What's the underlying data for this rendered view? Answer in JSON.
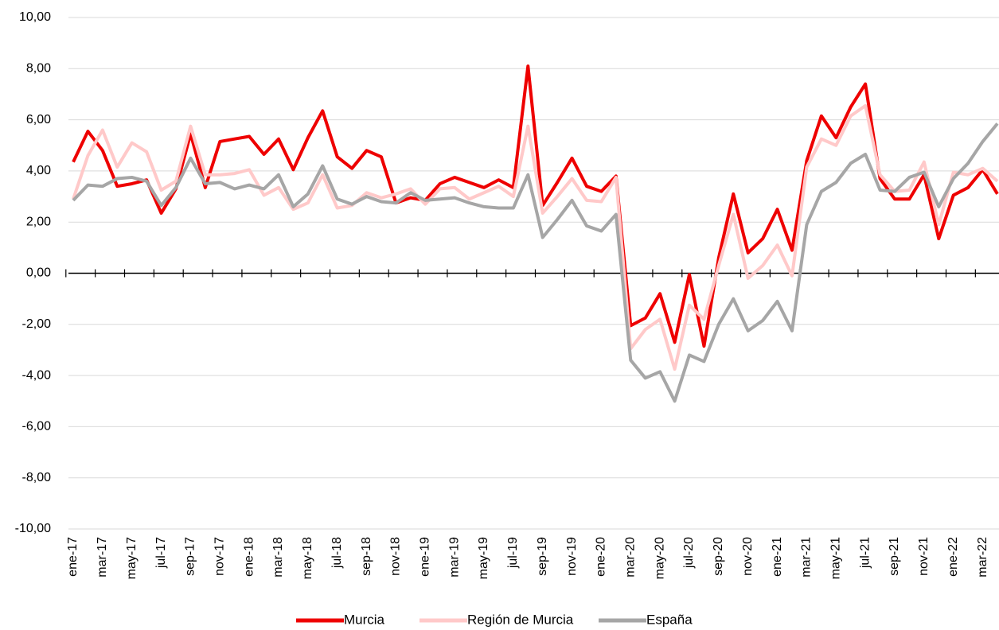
{
  "chart_data": {
    "type": "line",
    "categories": [
      "ene-17",
      null,
      "mar-17",
      null,
      "may-17",
      null,
      "jul-17",
      null,
      "sep-17",
      null,
      "nov-17",
      null,
      "ene-18",
      null,
      "mar-18",
      null,
      "may-18",
      null,
      "jul-18",
      null,
      "sep-18",
      null,
      "nov-18",
      null,
      "ene-19",
      null,
      "mar-19",
      null,
      "may-19",
      null,
      "jul-19",
      null,
      "sep-19",
      null,
      "nov-19",
      null,
      "ene-20",
      null,
      "mar-20",
      null,
      "may-20",
      null,
      "jul-20",
      null,
      "sep-20",
      null,
      "nov-20",
      null,
      "ene-21",
      null,
      "mar-21",
      null,
      "may-21",
      null,
      "jul-21",
      null,
      "sep-21",
      null,
      "nov-21",
      null,
      "ene-22",
      null,
      "mar-22",
      null
    ],
    "series": [
      {
        "name": "Murcia",
        "color": "#ee0000",
        "values": [
          4.35,
          5.55,
          4.8,
          3.4,
          3.5,
          3.65,
          2.35,
          3.3,
          5.45,
          3.35,
          5.15,
          5.25,
          5.35,
          4.65,
          5.25,
          4.05,
          5.3,
          6.35,
          4.55,
          4.1,
          4.8,
          4.55,
          2.75,
          2.95,
          2.85,
          3.5,
          3.75,
          3.55,
          3.35,
          3.65,
          3.35,
          8.1,
          2.65,
          3.55,
          4.5,
          3.4,
          3.2,
          3.8,
          -2.05,
          -1.75,
          -0.8,
          -2.7,
          -0.05,
          -2.85,
          0.6,
          3.1,
          0.8,
          1.35,
          2.5,
          0.9,
          4.4,
          6.15,
          5.3,
          6.5,
          7.4,
          3.7,
          2.9,
          2.9,
          3.85,
          1.35,
          3.05,
          3.35,
          4.05,
          3.1
        ]
      },
      {
        "name": "Región de Murcia",
        "color": "#ffc9c9",
        "values": [
          2.9,
          4.6,
          5.6,
          4.15,
          5.1,
          4.75,
          3.25,
          3.6,
          5.75,
          3.85,
          3.85,
          3.9,
          4.05,
          3.05,
          3.35,
          2.5,
          2.75,
          3.85,
          2.55,
          2.65,
          3.15,
          2.95,
          3.1,
          3.3,
          2.7,
          3.3,
          3.35,
          2.9,
          3.15,
          3.4,
          3.0,
          5.75,
          2.35,
          3.0,
          3.7,
          2.85,
          2.8,
          3.75,
          -2.95,
          -2.2,
          -1.8,
          -3.75,
          -1.25,
          -1.8,
          0.3,
          2.3,
          -0.2,
          0.3,
          1.1,
          -0.1,
          4.15,
          5.25,
          5.0,
          6.15,
          6.55,
          3.85,
          3.2,
          3.25,
          4.35,
          1.9,
          3.95,
          3.85,
          4.1,
          3.6
        ]
      },
      {
        "name": "España",
        "color": "#a6a6a6",
        "values": [
          2.85,
          3.45,
          3.4,
          3.7,
          3.75,
          3.6,
          2.65,
          3.35,
          4.5,
          3.5,
          3.55,
          3.3,
          3.45,
          3.3,
          3.85,
          2.6,
          3.1,
          4.2,
          2.9,
          2.7,
          3.0,
          2.8,
          2.75,
          3.15,
          2.85,
          2.9,
          2.95,
          2.75,
          2.6,
          2.55,
          2.55,
          3.85,
          1.4,
          2.1,
          2.85,
          1.85,
          1.65,
          2.3,
          -3.4,
          -4.1,
          -3.85,
          -5.0,
          -3.2,
          -3.45,
          -2.0,
          -1.0,
          -2.25,
          -1.85,
          -1.1,
          -2.25,
          1.9,
          3.2,
          3.55,
          4.3,
          4.65,
          3.25,
          3.2,
          3.75,
          3.95,
          2.6,
          3.7,
          4.3,
          5.15,
          5.85
        ]
      }
    ],
    "ylim": [
      -10,
      10
    ],
    "yticks": [
      {
        "value": -10,
        "label": "-10,00"
      },
      {
        "value": -8,
        "label": "-8,00"
      },
      {
        "value": -6,
        "label": "-6,00"
      },
      {
        "value": -4,
        "label": "-4,00"
      },
      {
        "value": -2,
        "label": "-2,00"
      },
      {
        "value": 0,
        "label": "0,00"
      },
      {
        "value": 2,
        "label": "2,00"
      },
      {
        "value": 4,
        "label": "4,00"
      },
      {
        "value": 6,
        "label": "6,00"
      },
      {
        "value": 8,
        "label": "8,00"
      },
      {
        "value": 10,
        "label": "10,00"
      }
    ],
    "grid": true,
    "legend": "bottom"
  }
}
